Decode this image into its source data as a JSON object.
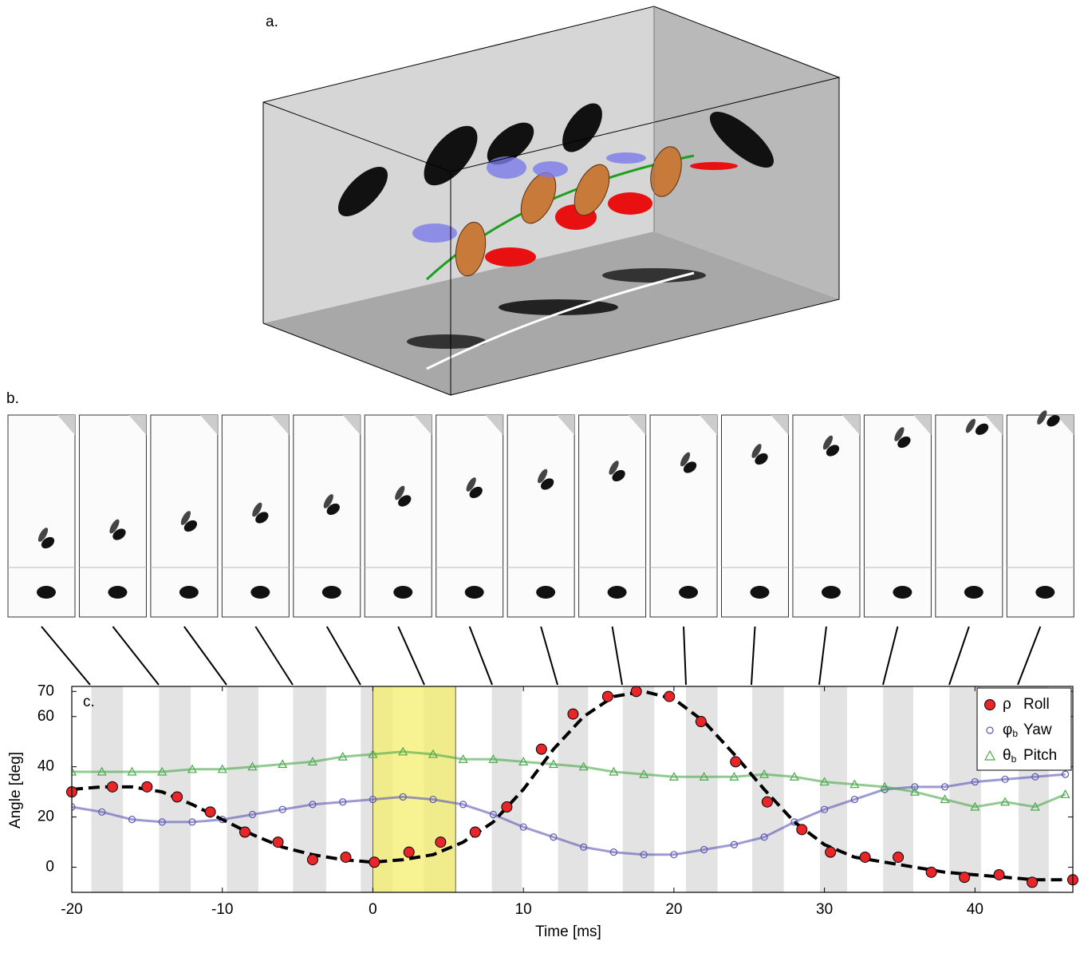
{
  "panels": {
    "a": "a.",
    "b": "b."
  },
  "chart_data": {
    "type": "scatter",
    "panel_label": "c.",
    "xlabel": "Time [ms]",
    "ylabel": "Angle [deg]",
    "xlim": [
      -20,
      46.5
    ],
    "ylim": [
      -10,
      72
    ],
    "xticks": [
      -20,
      -10,
      0,
      10,
      20,
      30,
      40
    ],
    "yticks": [
      0,
      20,
      40,
      60,
      70
    ],
    "legend": "upper right",
    "series": [
      {
        "name": "Roll",
        "symbol": "ρ",
        "color": "#e8262a",
        "marker": "circle",
        "x": [
          -20,
          -17.3,
          -15,
          -13,
          -10.8,
          -8.5,
          -6.3,
          -4,
          -1.8,
          0.1,
          2.4,
          4.5,
          6.8,
          8.9,
          11.2,
          13.3,
          15.6,
          17.5,
          19.7,
          21.8,
          24.1,
          26.2,
          28.5,
          30.4,
          32.7,
          34.9,
          37.1,
          39.3,
          41.6,
          43.8,
          46.5
        ],
        "values": [
          30,
          32,
          32,
          28,
          22,
          14,
          10,
          3,
          4,
          2,
          6,
          10,
          14,
          24,
          47,
          61,
          68,
          70,
          68,
          58,
          42,
          26,
          15,
          6,
          4,
          4,
          -2,
          -4,
          -3,
          -6,
          -5
        ]
      },
      {
        "name": "Yaw",
        "symbol": "φ",
        "symbol_sub": "b",
        "color": "#5b57b3",
        "marker": "open-circle",
        "x": [
          -20,
          -18,
          -16,
          -14,
          -12,
          -10,
          -8,
          -6,
          -4,
          -2,
          0,
          2,
          4,
          6,
          8,
          10,
          12,
          14,
          16,
          18,
          20,
          22,
          24,
          26,
          28,
          30,
          32,
          34,
          36,
          38,
          40,
          42,
          44,
          46
        ],
        "values": [
          24,
          22,
          19,
          18,
          18,
          19,
          21,
          23,
          25,
          26,
          27,
          28,
          27,
          25,
          21,
          16,
          12,
          8,
          6,
          5,
          5,
          7,
          9,
          12,
          18,
          23,
          27,
          31,
          32,
          32,
          34,
          35,
          36,
          37
        ]
      },
      {
        "name": "Pitch",
        "symbol": "θ",
        "symbol_sub": "b",
        "color": "#4aa84a",
        "marker": "triangle",
        "x": [
          -20,
          -18,
          -16,
          -14,
          -12,
          -10,
          -8,
          -6,
          -4,
          -2,
          0,
          2,
          4,
          6,
          8,
          10,
          12,
          14,
          16,
          18,
          20,
          22,
          24,
          26,
          28,
          30,
          32,
          34,
          36,
          38,
          40,
          42,
          44,
          46
        ],
        "values": [
          38,
          38,
          38,
          38,
          39,
          39,
          40,
          41,
          42,
          44,
          45,
          46,
          45,
          43,
          43,
          42,
          41,
          40,
          38,
          37,
          36,
          36,
          36,
          37,
          36,
          34,
          33,
          32,
          30,
          27,
          24,
          26,
          24,
          29
        ]
      }
    ],
    "fit": {
      "color": "#000000",
      "x": [
        -20,
        -18,
        -16,
        -14,
        -12,
        -10,
        -8,
        -6,
        -4,
        -2,
        0,
        2,
        4,
        6,
        8,
        10,
        12,
        14,
        16,
        18,
        20,
        22,
        24,
        26,
        28,
        30,
        32,
        34,
        36,
        38,
        40,
        42,
        44,
        46
      ],
      "values": [
        31,
        32,
        32,
        30,
        25,
        19,
        13,
        8,
        5,
        3,
        2,
        3,
        5,
        10,
        18,
        31,
        47,
        60,
        68,
        70,
        67,
        58,
        45,
        31,
        18,
        9,
        4,
        2,
        0,
        -2,
        -3,
        -4,
        -5,
        -5
      ]
    },
    "wingbeat_bands": [
      [
        -18.7,
        -16.6
      ],
      [
        -14.2,
        -12.1
      ],
      [
        -9.7,
        -7.6
      ],
      [
        -5.3,
        -3.1
      ],
      [
        -0.8,
        1.3
      ],
      [
        3.4,
        5.5
      ],
      [
        7.9,
        9.9
      ],
      [
        12.3,
        14.3
      ],
      [
        16.6,
        18.7
      ],
      [
        20.8,
        22.9
      ],
      [
        25.2,
        27.3
      ],
      [
        29.7,
        31.5
      ],
      [
        33.9,
        35.9
      ],
      [
        38.3,
        40.4
      ],
      [
        42.9,
        44.9
      ]
    ],
    "highlight": [
      0,
      5.5
    ]
  }
}
